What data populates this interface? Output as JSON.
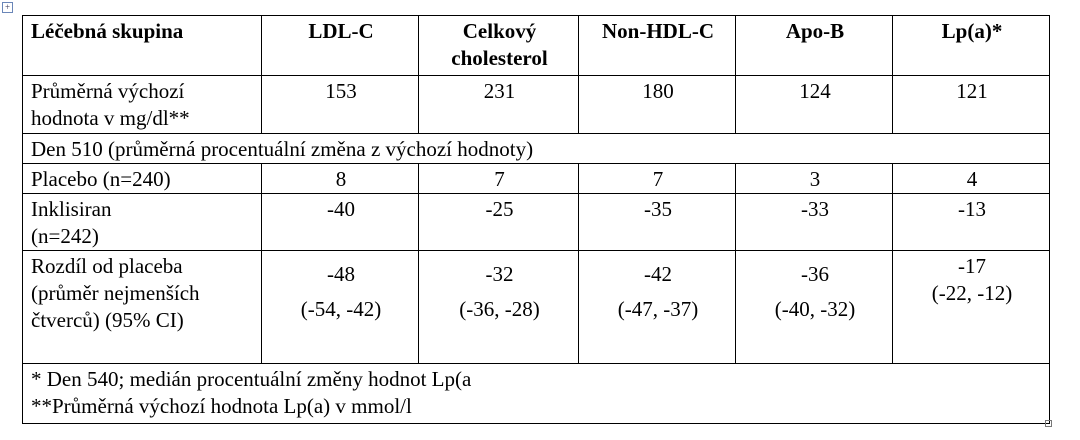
{
  "table": {
    "header": [
      "Léčebná skupina",
      "LDL-C",
      "Celkový cholesterol",
      "Non-HDL-C",
      "Apo-B",
      "Lp(a)*"
    ],
    "baseline": {
      "label": "Průměrná výchozí hodnota v mg/dl**",
      "values": [
        153,
        231,
        180,
        124,
        121
      ]
    },
    "section": "Den 510 (průměrná procentuální změna z výchozí hodnoty)",
    "rows": [
      {
        "label": "Placebo (n=240)",
        "values": [
          8,
          7,
          7,
          3,
          4
        ]
      },
      {
        "label": "Inklisiran (n=242)",
        "values": [
          -40,
          -25,
          -35,
          -33,
          -13
        ]
      }
    ],
    "difference": {
      "label": "Rozdíl od placeba (průměr nejmenších čtverců) (95% CI)",
      "values": [
        -48,
        -32,
        -42,
        -36,
        -17
      ],
      "ci": [
        "(-54, -42)",
        "(-36, -28)",
        "(-47, -37)",
        "(-40, -32)",
        "(-22, -12)"
      ]
    },
    "footnotes": [
      "* Den 540; medián procentuální změny hodnot Lp(a",
      "**Průměrná výchozí hodnota Lp(a) v mmol/l"
    ]
  }
}
